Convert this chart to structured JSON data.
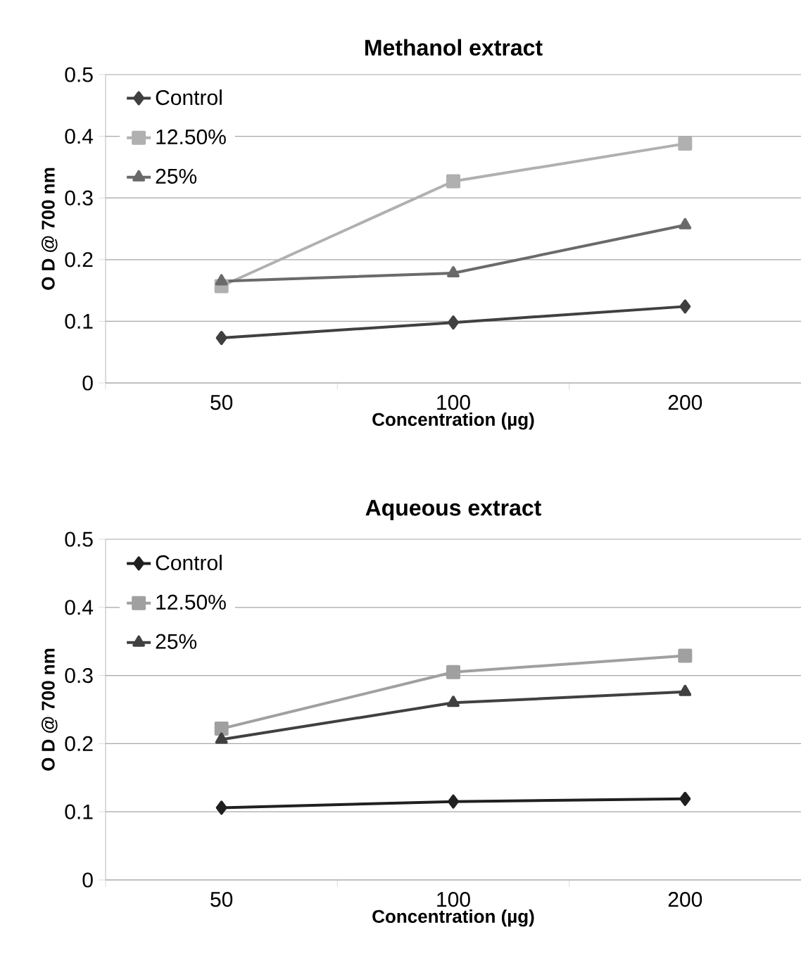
{
  "chart_data": [
    {
      "type": "line",
      "title": "Methanol extract",
      "xlabel": "Concentration (µg)",
      "ylabel": "O D @  700 nm",
      "categories": [
        "50",
        "100",
        "200"
      ],
      "ylim": [
        0,
        0.5
      ],
      "yticks": [
        0,
        0.1,
        0.2,
        0.3,
        0.4,
        0.5
      ],
      "grid": "y",
      "legend": "top left",
      "line_style": "solid",
      "series": [
        {
          "name": "Control",
          "color": "#404040",
          "marker": "diamond",
          "values": [
            0.073,
            0.098,
            0.124
          ]
        },
        {
          "name": "12.50%",
          "color": "#b0b0b0",
          "marker": "square",
          "values": [
            0.157,
            0.327,
            0.388
          ]
        },
        {
          "name": "25%",
          "color": "#6a6a6a",
          "marker": "triangle",
          "values": [
            0.165,
            0.178,
            0.256
          ]
        }
      ]
    },
    {
      "type": "line",
      "title": "Aqueous extract",
      "xlabel": "Concentration (µg)",
      "ylabel": "O D @ 700 nm",
      "categories": [
        "50",
        "100",
        "200"
      ],
      "ylim": [
        0,
        0.5
      ],
      "yticks": [
        0,
        0.1,
        0.2,
        0.3,
        0.4,
        0.5
      ],
      "grid": "y",
      "legend": "top left",
      "line_style": "solid",
      "series": [
        {
          "name": "Control",
          "color": "#202020",
          "marker": "diamond",
          "values": [
            0.106,
            0.115,
            0.119
          ]
        },
        {
          "name": "12.50%",
          "color": "#a0a0a0",
          "marker": "square",
          "values": [
            0.222,
            0.305,
            0.329
          ]
        },
        {
          "name": "25%",
          "color": "#404040",
          "marker": "triangle",
          "values": [
            0.206,
            0.26,
            0.276
          ]
        }
      ]
    }
  ]
}
